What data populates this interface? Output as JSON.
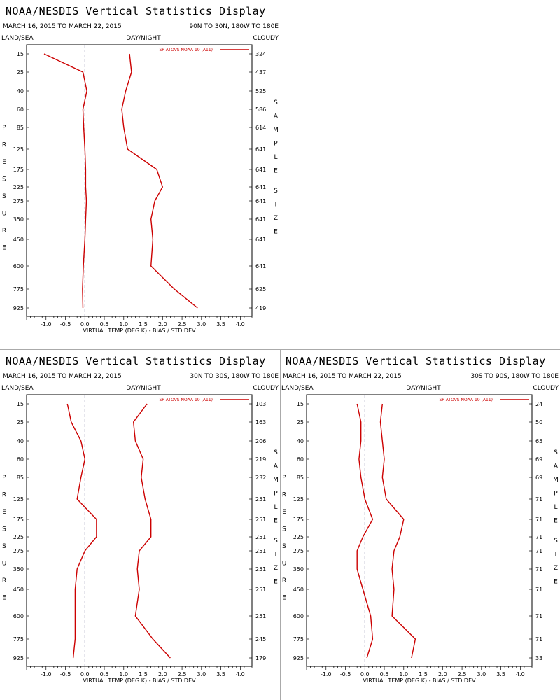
{
  "header": {
    "title": "NOAA/NESDIS Vertical Statistics Display",
    "land_sea": "LAND/SEA",
    "day_night": "DAY/NIGHT",
    "cloudy": "CLOUDY",
    "pressure_letters": [
      "P",
      "R",
      "E",
      "S",
      "S",
      "U",
      "R",
      "E"
    ],
    "sample_letters": [
      "S",
      "A",
      "M",
      "P",
      "L",
      "E"
    ],
    "size_letters": [
      "S",
      "I",
      "Z",
      "E"
    ]
  },
  "colors": {
    "series": "#cc0000",
    "zero_line": "#333366",
    "axes": "#000000"
  },
  "chart_data": [
    {
      "type": "line",
      "date_range": "MARCH 16, 2015 TO MARCH 22, 2015",
      "region": "90N TO 30N, 180W TO 180E",
      "legend": "SP ATOVS NOAA-19 (A11)",
      "xlabel": "VIRTUAL TEMP (DEG K) - BIAS / STD DEV",
      "xlim": [
        -1.5,
        4.3
      ],
      "x_ticks": [
        "-1.0",
        "-0.5",
        "0.0",
        "0.5",
        "1.0",
        "1.5",
        "2.0",
        "2.5",
        "3.0",
        "3.5",
        "4.0"
      ],
      "pressure_levels": [
        "15",
        "25",
        "40",
        "60",
        "85",
        "125",
        "175",
        "225",
        "275",
        "350",
        "450",
        "600",
        "775",
        "925"
      ],
      "sample_size": [
        "324",
        "437",
        "525",
        "586",
        "614",
        "641",
        "641",
        "641",
        "641",
        "641",
        "641",
        "641",
        "625",
        "419"
      ],
      "bias": [
        -1.05,
        -0.05,
        0.05,
        -0.05,
        -0.03,
        0.0,
        0.02,
        0.02,
        0.04,
        0.02,
        0.0,
        -0.04,
        -0.06,
        -0.05
      ],
      "std_dev": [
        1.15,
        1.2,
        1.05,
        0.95,
        1.0,
        1.1,
        1.85,
        2.0,
        1.8,
        1.7,
        1.75,
        1.7,
        2.3,
        2.9
      ]
    },
    {
      "type": "line",
      "date_range": "MARCH 16, 2015 TO MARCH 22, 2015",
      "region": "30N TO 30S, 180W TO 180E",
      "legend": "SP ATOVS NOAA-19 (A11)",
      "xlabel": "VIRTUAL TEMP (DEG K) - BIAS / STD DEV",
      "xlim": [
        -1.5,
        4.3
      ],
      "x_ticks": [
        "-1.0",
        "-0.5",
        "0.0",
        "0.5",
        "1.0",
        "1.5",
        "2.0",
        "2.5",
        "3.0",
        "3.5",
        "4.0"
      ],
      "pressure_levels": [
        "15",
        "25",
        "40",
        "60",
        "85",
        "125",
        "175",
        "225",
        "275",
        "350",
        "450",
        "600",
        "775",
        "925"
      ],
      "sample_size": [
        "103",
        "163",
        "206",
        "219",
        "232",
        "251",
        "251",
        "251",
        "251",
        "251",
        "251",
        "251",
        "245",
        "179"
      ],
      "bias": [
        -0.45,
        -0.35,
        -0.1,
        0.0,
        -0.1,
        -0.2,
        0.3,
        0.3,
        0.0,
        -0.2,
        -0.25,
        -0.25,
        -0.25,
        -0.3
      ],
      "std_dev": [
        1.6,
        1.25,
        1.3,
        1.5,
        1.45,
        1.55,
        1.7,
        1.7,
        1.4,
        1.35,
        1.4,
        1.3,
        1.75,
        2.2
      ]
    },
    {
      "type": "line",
      "date_range": "MARCH 16, 2015 TO MARCH 22, 2015",
      "region": "30S TO 90S, 180W TO 180E",
      "legend": "SP ATOVS NOAA-19 (A11)",
      "xlabel": "VIRTUAL TEMP (DEG K) - BIAS / STD DEV",
      "xlim": [
        -1.5,
        4.3
      ],
      "x_ticks": [
        "-1.0",
        "-0.5",
        "0.0",
        "0.5",
        "1.0",
        "1.5",
        "2.0",
        "2.5",
        "3.0",
        "3.5",
        "4.0"
      ],
      "pressure_levels": [
        "15",
        "25",
        "40",
        "60",
        "85",
        "125",
        "175",
        "225",
        "275",
        "350",
        "450",
        "600",
        "775",
        "925"
      ],
      "sample_size": [
        "24",
        "50",
        "65",
        "69",
        "69",
        "71",
        "71",
        "71",
        "71",
        "71",
        "71",
        "71",
        "71",
        "33"
      ],
      "bias": [
        -0.2,
        -0.1,
        -0.1,
        -0.15,
        -0.1,
        0.0,
        0.2,
        -0.05,
        -0.2,
        -0.2,
        -0.05,
        0.15,
        0.2,
        0.05
      ],
      "std_dev": [
        0.45,
        0.4,
        0.45,
        0.5,
        0.45,
        0.55,
        1.0,
        0.9,
        0.75,
        0.7,
        0.75,
        0.7,
        1.3,
        1.2
      ]
    }
  ]
}
